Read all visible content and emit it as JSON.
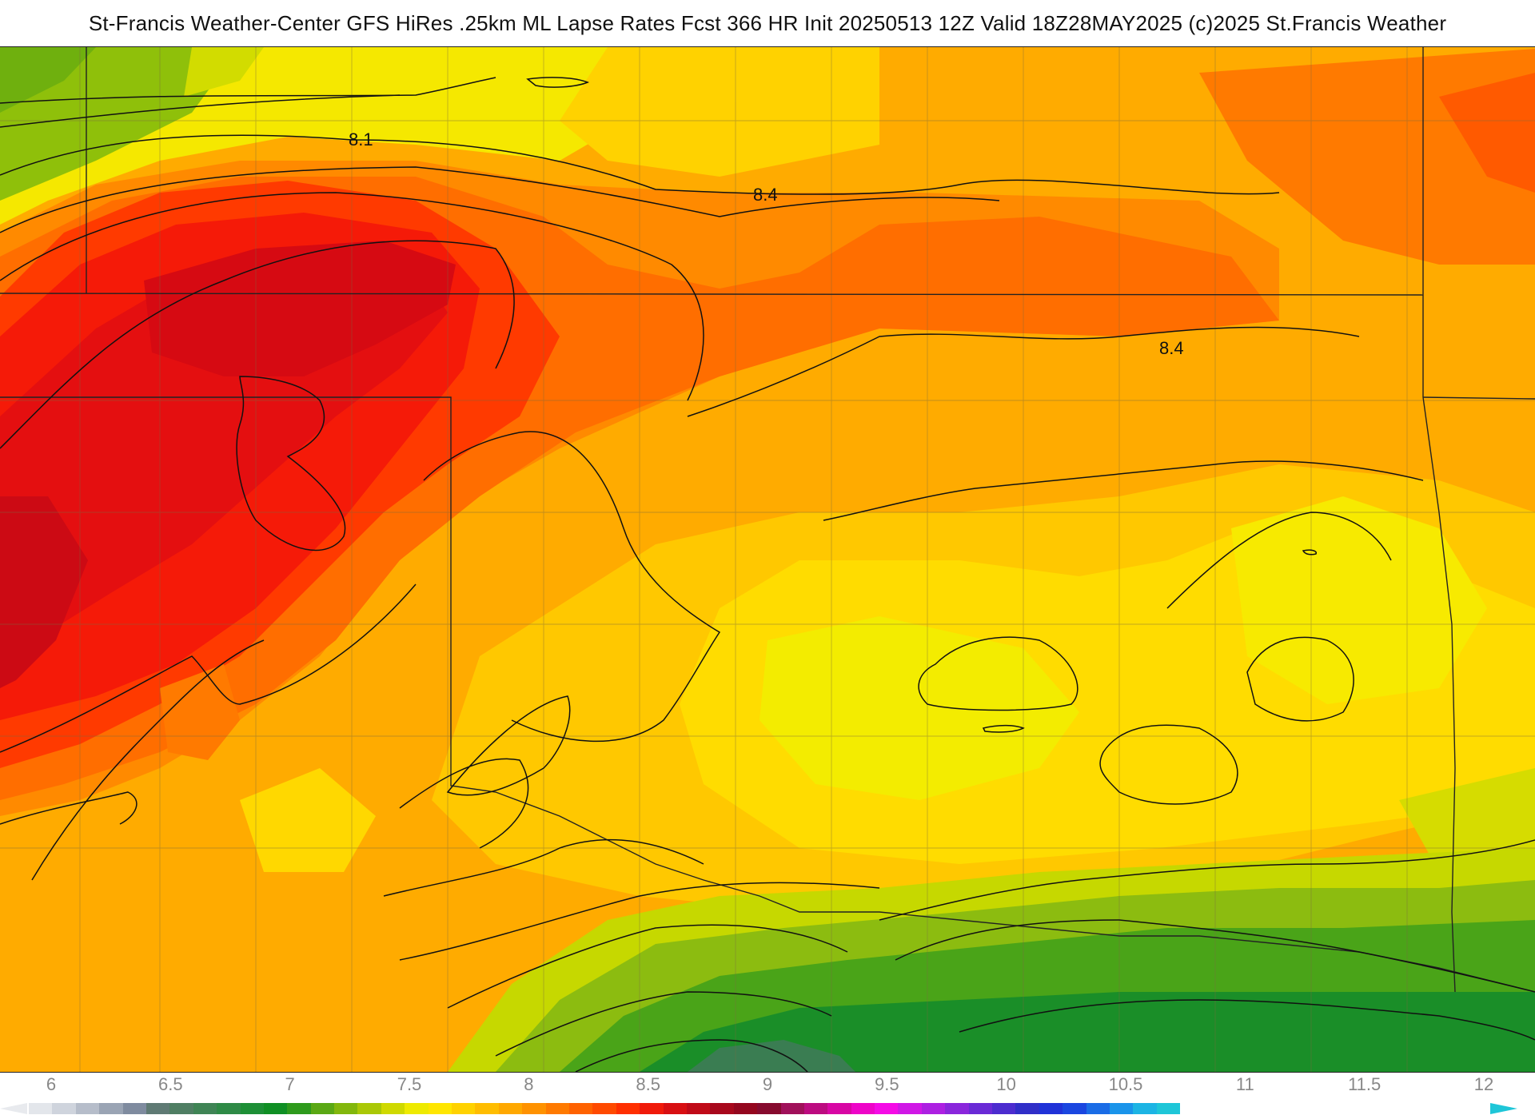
{
  "header": {
    "title": "St-Francis Weather-Center GFS HiRes .25km ML Lapse Rates  Fcst 366 HR Init 20250513 12Z  Valid 18Z28MAY2025    (c)2025 St.Francis Weather"
  },
  "map": {
    "contour_labels": [
      "8.1",
      "8.4",
      "8.4"
    ]
  },
  "legend": {
    "ticks": [
      "6",
      "6.5",
      "7",
      "7.5",
      "8",
      "8.5",
      "9",
      "9.5",
      "10",
      "10.5",
      "11",
      "11.5",
      "12"
    ],
    "colors": [
      "#e3e6eb",
      "#cfd4dd",
      "#b6bdca",
      "#9aa4b4",
      "#7f8b9f",
      "#5f7a74",
      "#4f7e63",
      "#3f8455",
      "#2e8a46",
      "#1d8f36",
      "#0f8f24",
      "#2e9a1c",
      "#5aa814",
      "#82b70c",
      "#aac806",
      "#cfd900",
      "#eeea00",
      "#ffe600",
      "#ffd200",
      "#ffbd00",
      "#ffa800",
      "#ff9200",
      "#ff7a00",
      "#ff6200",
      "#ff4a00",
      "#ff2f00",
      "#f01a0a",
      "#d80f12",
      "#c00a18",
      "#a8081c",
      "#94061e",
      "#860a2e",
      "#a0105a",
      "#bc0b80",
      "#d806a4",
      "#ee04c8",
      "#f50ae6",
      "#d017e6",
      "#ad20e2",
      "#8a26dc",
      "#6a2ad6",
      "#4c2ccf",
      "#302ec8",
      "#2032d8",
      "#1a46e0",
      "#1a6ce6",
      "#1a94ea",
      "#1cb4e4",
      "#1ec6d8"
    ]
  }
}
